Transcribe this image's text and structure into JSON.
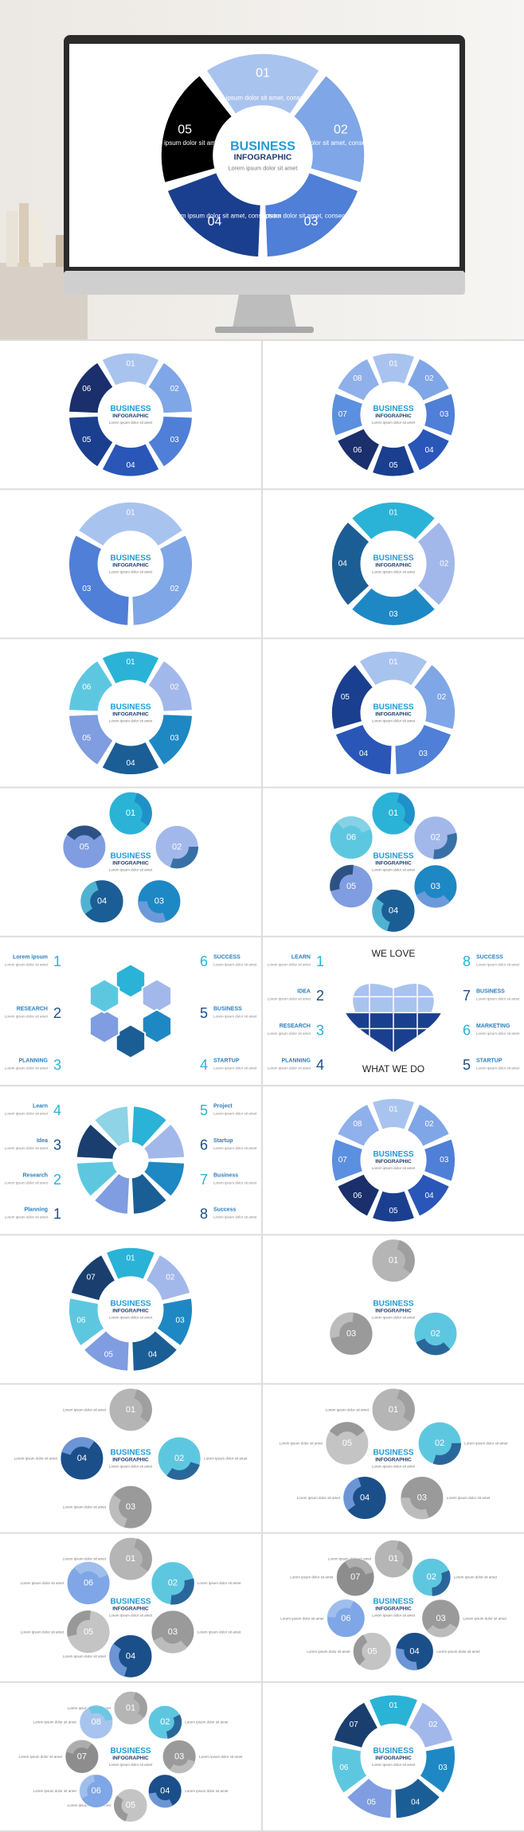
{
  "palettes": {
    "blue": [
      "#a9c3ef",
      "#7fa6e6",
      "#4f7fd6",
      "#2a56b8",
      "#1b3f8f",
      "#1a2f6b",
      "#5b8fe0",
      "#8fb0ea"
    ],
    "teal": [
      "#2ab3d6",
      "#a3b8ea",
      "#1e88c4",
      "#1b5e95",
      "#7f9de0",
      "#5ec7e0",
      "#1a3f6e",
      "#8fd3e6"
    ],
    "gray": [
      "#b5b5b5",
      "#5ec7e0",
      "#9a9a9a",
      "#1b4f8a",
      "#c4c4c4",
      "#7fa6e6",
      "#8d8d8d",
      "#a8c4ee"
    ]
  },
  "hero": {
    "title": "BUSINESS",
    "subtitle": "INFOGRAPHIC",
    "caption": "Lorem ipsum dolor sit amet",
    "numbers": [
      "01",
      "02",
      "03",
      "04",
      "05"
    ],
    "item_text": "Lorem ipsum dolor sit amet, consectetur"
  },
  "slides": [
    {
      "style": "ring",
      "palette": "blue",
      "title": "BUSINESS",
      "subtitle": "INFOGRAPHIC",
      "caption": "Lorem ipsum dolor sit amet",
      "numbers": [
        "01",
        "02",
        "03",
        "04",
        "05",
        "06"
      ]
    },
    {
      "style": "ring",
      "palette": "blue",
      "title": "BUSINESS",
      "subtitle": "INFOGRAPHIC",
      "caption": "Lorem ipsum dolor sit amet",
      "numbers": [
        "01",
        "02",
        "03",
        "04",
        "05",
        "06",
        "07",
        "08"
      ]
    },
    {
      "style": "ring",
      "palette": "blue",
      "title": "BUSINESS",
      "subtitle": "INFOGRAPHIC",
      "caption": "Lorem ipsum dolor sit amet",
      "numbers": [
        "01",
        "02",
        "03"
      ]
    },
    {
      "style": "ring",
      "palette": "teal",
      "title": "BUSINESS",
      "subtitle": "INFOGRAPHIC",
      "caption": "Lorem ipsum dolor sit amet",
      "numbers": [
        "01",
        "02",
        "03",
        "04"
      ]
    },
    {
      "style": "ring",
      "palette": "teal",
      "title": "BUSINESS",
      "subtitle": "INFOGRAPHIC",
      "caption": "Lorem ipsum dolor sit amet",
      "numbers": [
        "01",
        "02",
        "03",
        "04",
        "05",
        "06"
      ]
    },
    {
      "style": "ring",
      "palette": "blue",
      "title": "BUSINESS",
      "subtitle": "INFOGRAPHIC",
      "caption": "Lorem ipsum dolor sit amet",
      "numbers": [
        "01",
        "02",
        "03",
        "04",
        "05"
      ]
    },
    {
      "style": "circles",
      "palette": "teal",
      "title": "BUSINESS",
      "subtitle": "INFOGRAPHIC",
      "caption": "Lorem ipsum dolor sit amet",
      "numbers": [
        "01",
        "02",
        "03",
        "04",
        "05"
      ]
    },
    {
      "style": "circles",
      "palette": "teal",
      "title": "BUSINESS",
      "subtitle": "INFOGRAPHIC",
      "caption": "Lorem ipsum dolor sit amet",
      "numbers": [
        "01",
        "02",
        "03",
        "04",
        "05",
        "06"
      ]
    },
    {
      "style": "hexagons",
      "palette": "teal",
      "item_text": "Lorem ipsum dolor sit amet",
      "sides": [
        {
          "num": "1",
          "label": "Lorem ipsum"
        },
        {
          "num": "2",
          "label": "RESEARCH"
        },
        {
          "num": "3",
          "label": "PLANNING"
        },
        {
          "num": "6",
          "label": "SUCCESS"
        },
        {
          "num": "5",
          "label": "BUSINESS"
        },
        {
          "num": "4",
          "label": "STARTUP"
        }
      ]
    },
    {
      "style": "heart",
      "palette": "blue",
      "title": "WE LOVE",
      "subtitle": "WHAT WE DO",
      "item_text": "Lorem ipsum dolor sit amet",
      "sides": [
        {
          "num": "1",
          "label": "LEARN"
        },
        {
          "num": "2",
          "label": "IDEA"
        },
        {
          "num": "3",
          "label": "RESEARCH"
        },
        {
          "num": "4",
          "label": "PLANNING"
        },
        {
          "num": "8",
          "label": "SUCCESS"
        },
        {
          "num": "7",
          "label": "BUSINESS"
        },
        {
          "num": "6",
          "label": "MARKETING"
        },
        {
          "num": "5",
          "label": "STARTUP"
        }
      ]
    },
    {
      "style": "petals",
      "palette": "teal",
      "item_text": "Lorem ipsum dolor sit amet",
      "sides": [
        {
          "num": "4",
          "label": "Learn"
        },
        {
          "num": "3",
          "label": "Idea"
        },
        {
          "num": "2",
          "label": "Research"
        },
        {
          "num": "1",
          "label": "Planning"
        },
        {
          "num": "5",
          "label": "Project"
        },
        {
          "num": "6",
          "label": "Startup"
        },
        {
          "num": "7",
          "label": "Business"
        },
        {
          "num": "8",
          "label": "Success"
        }
      ]
    },
    {
      "style": "ring",
      "palette": "blue",
      "title": "BUSINESS",
      "subtitle": "INFOGRAPHIC",
      "caption": "Lorem ipsum dolor sit amet",
      "numbers": [
        "01",
        "02",
        "03",
        "04",
        "05",
        "06",
        "07",
        "08"
      ]
    },
    {
      "style": "ring",
      "palette": "teal",
      "title": "BUSINESS",
      "subtitle": "INFOGRAPHIC",
      "caption": "Lorem ipsum dolor sit amet",
      "numbers": [
        "01",
        "02",
        "03",
        "04",
        "05",
        "06",
        "07"
      ]
    },
    {
      "style": "circles",
      "palette": "gray",
      "title": "BUSINESS",
      "subtitle": "INFOGRAPHIC",
      "caption": "Lorem ipsum dolor sit amet",
      "numbers": [
        "01",
        "02",
        "03"
      ]
    },
    {
      "style": "circles",
      "palette": "gray",
      "title": "BUSINESS",
      "subtitle": "INFOGRAPHIC",
      "caption": "Lorem ipsum dolor sit amet",
      "numbers": [
        "01",
        "02",
        "03",
        "04"
      ],
      "item_text": "Lorem ipsum dolor sit amet"
    },
    {
      "style": "circles",
      "palette": "gray",
      "title": "BUSINESS",
      "subtitle": "INFOGRAPHIC",
      "caption": "Lorem ipsum dolor sit amet",
      "numbers": [
        "01",
        "02",
        "03",
        "04",
        "05"
      ],
      "item_text": "Lorem ipsum dolor sit amet"
    },
    {
      "style": "circles",
      "palette": "gray",
      "title": "BUSINESS",
      "subtitle": "INFOGRAPHIC",
      "caption": "Lorem ipsum dolor sit amet",
      "numbers": [
        "01",
        "02",
        "03",
        "04",
        "05",
        "06"
      ],
      "item_text": "Lorem ipsum dolor sit amet"
    },
    {
      "style": "circles",
      "palette": "gray",
      "title": "BUSINESS",
      "subtitle": "INFOGRAPHIC",
      "caption": "Lorem ipsum dolor sit amet",
      "numbers": [
        "01",
        "02",
        "03",
        "04",
        "05",
        "06",
        "07"
      ],
      "item_text": "Lorem ipsum dolor sit amet"
    },
    {
      "style": "circles",
      "palette": "gray",
      "title": "BUSINESS",
      "subtitle": "INFOGRAPHIC",
      "caption": "Lorem ipsum dolor sit amet",
      "numbers": [
        "01",
        "02",
        "03",
        "04",
        "05",
        "06",
        "07",
        "08"
      ],
      "item_text": "Lorem ipsum dolor sit amet"
    },
    {
      "style": "ring",
      "palette": "teal",
      "title": "BUSINESS",
      "subtitle": "INFOGRAPHIC",
      "caption": "Lorem ipsum dolor sit amet",
      "numbers": [
        "01",
        "02",
        "03",
        "04",
        "05",
        "06",
        "07"
      ]
    }
  ]
}
